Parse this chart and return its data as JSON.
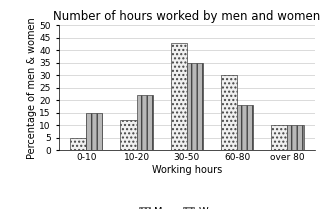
{
  "title": "Number of hours worked by men and women",
  "xlabel": "Working hours",
  "ylabel": "Percentage of men & women",
  "categories": [
    "0-10",
    "10-20",
    "30-50",
    "60-80",
    "over 80"
  ],
  "men_values": [
    5,
    12,
    43,
    30,
    10
  ],
  "women_values": [
    15,
    22,
    35,
    18,
    10
  ],
  "ylim": [
    0,
    50
  ],
  "yticks": [
    0,
    5,
    10,
    15,
    20,
    25,
    30,
    35,
    40,
    45,
    50
  ],
  "bar_width": 0.32,
  "men_hatch": "....",
  "women_hatch": "|||",
  "men_facecolor": "#f0f0f0",
  "women_facecolor": "#b8b8b8",
  "edgecolor": "#444444",
  "title_fontsize": 8.5,
  "axis_label_fontsize": 7,
  "tick_fontsize": 6.5,
  "legend_fontsize": 7
}
